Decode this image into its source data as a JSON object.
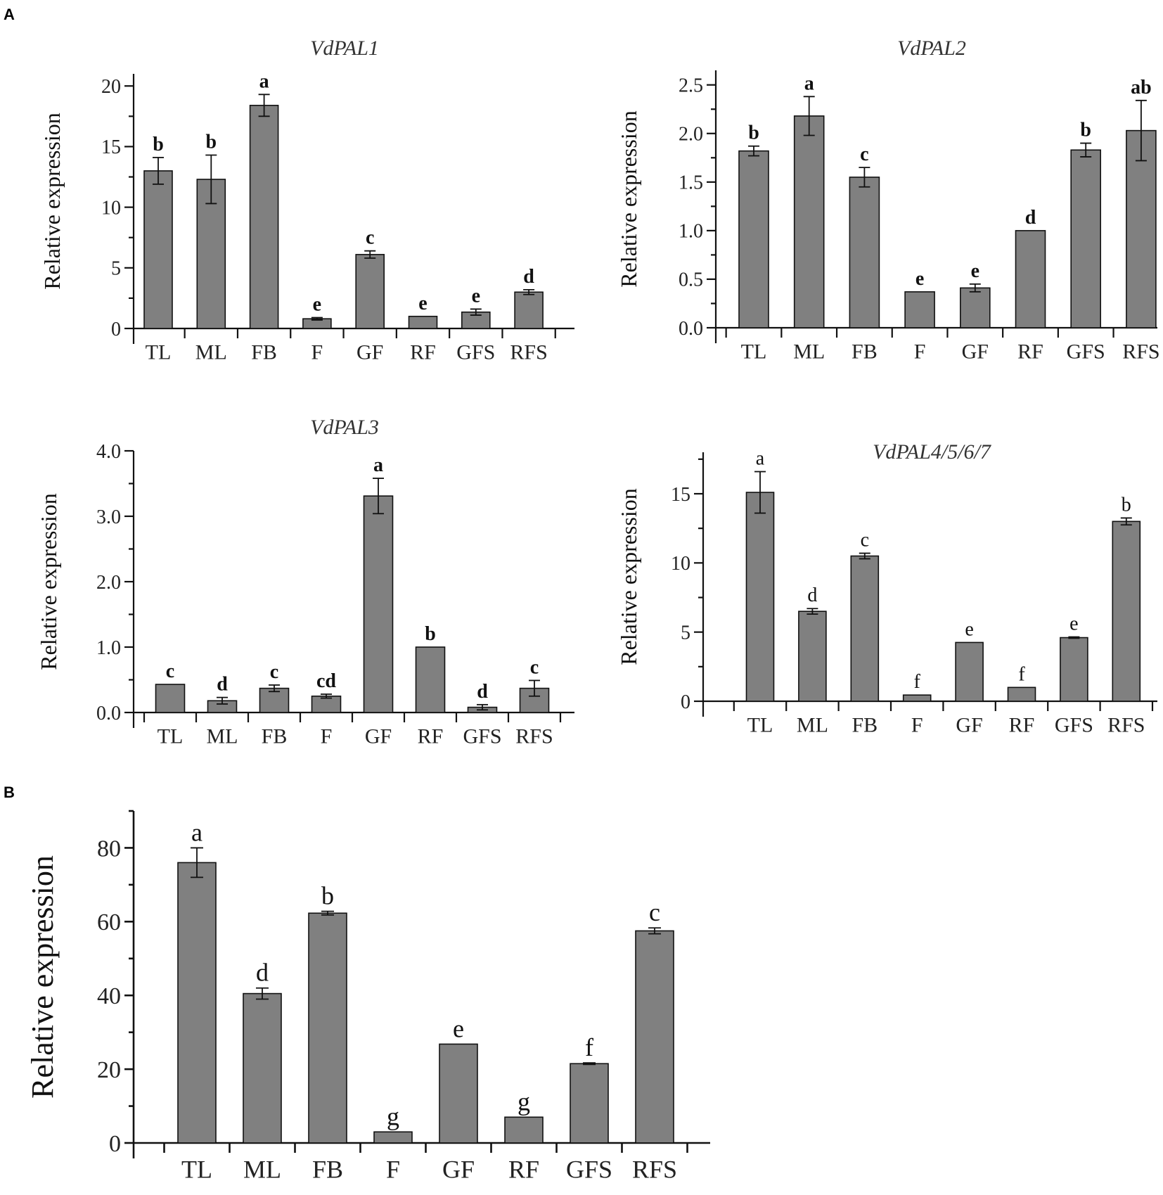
{
  "panel_labels": [
    "A",
    "B"
  ],
  "bar_color": "#808080",
  "chart_data": [
    {
      "panel": "A",
      "type": "bar",
      "title": "VdPAL1",
      "ylabel": "Relative expression",
      "xlabel": "",
      "ylim": [
        0,
        21
      ],
      "yticks": [
        0,
        5,
        10,
        15,
        20
      ],
      "ytick_labels": [
        "0",
        "5",
        "10",
        "15",
        "20"
      ],
      "categories": [
        "TL",
        "ML",
        "FB",
        "F",
        "GF",
        "RF",
        "GFS",
        "RFS"
      ],
      "values": [
        13.0,
        12.3,
        18.4,
        0.8,
        6.1,
        1.0,
        1.35,
        3.0
      ],
      "errors": [
        1.1,
        2.0,
        0.9,
        0.1,
        0.3,
        0.0,
        0.25,
        0.2
      ],
      "significance": [
        "b",
        "b",
        "a",
        "e",
        "c",
        "e",
        "e",
        "d"
      ],
      "sig_bold": true
    },
    {
      "panel": "A",
      "type": "bar",
      "title": "VdPAL2",
      "ylabel": "Relative expression",
      "xlabel": "",
      "ylim": [
        0,
        2.65
      ],
      "yticks": [
        0,
        0.5,
        1.0,
        1.5,
        2.0,
        2.5
      ],
      "ytick_labels": [
        "0.0",
        "0.5",
        "1.0",
        "1.5",
        "2.0",
        "2.5"
      ],
      "categories": [
        "TL",
        "ML",
        "FB",
        "F",
        "GF",
        "RF",
        "GFS",
        "RFS"
      ],
      "values": [
        1.82,
        2.18,
        1.55,
        0.37,
        0.41,
        1.0,
        1.83,
        2.03
      ],
      "errors": [
        0.05,
        0.2,
        0.1,
        0.0,
        0.04,
        0.0,
        0.07,
        0.31
      ],
      "significance": [
        "b",
        "a",
        "c",
        "e",
        "e",
        "d",
        "b",
        "ab"
      ],
      "sig_bold": true
    },
    {
      "panel": "A",
      "type": "bar",
      "title": "VdPAL3",
      "ylabel": "Relative expression",
      "xlabel": "",
      "ylim": [
        0,
        4.0
      ],
      "yticks": [
        0,
        1.0,
        2.0,
        3.0,
        4.0
      ],
      "ytick_labels": [
        "0.0",
        "1.0",
        "2.0",
        "3.0",
        "4.0"
      ],
      "categories": [
        "TL",
        "ML",
        "FB",
        "F",
        "GF",
        "RF",
        "GFS",
        "RFS"
      ],
      "values": [
        0.43,
        0.18,
        0.37,
        0.25,
        3.31,
        1.0,
        0.08,
        0.37
      ],
      "errors": [
        0.0,
        0.05,
        0.05,
        0.03,
        0.27,
        0.0,
        0.04,
        0.12
      ],
      "significance": [
        "c",
        "d",
        "c",
        "cd",
        "a",
        "b",
        "d",
        "c"
      ],
      "sig_bold": true
    },
    {
      "panel": "A",
      "type": "bar",
      "title": "VdPAL4/5/6/7",
      "ylabel": "Relative expression",
      "xlabel": "",
      "ylim": [
        0,
        18
      ],
      "yticks": [
        0,
        5,
        10,
        15
      ],
      "ytick_labels": [
        "0",
        "5",
        "10",
        "15"
      ],
      "categories": [
        "TL",
        "ML",
        "FB",
        "F",
        "GF",
        "RF",
        "GFS",
        "RFS"
      ],
      "values": [
        15.1,
        6.5,
        10.5,
        0.45,
        4.25,
        1.0,
        4.6,
        13.0
      ],
      "errors": [
        1.5,
        0.2,
        0.2,
        0.0,
        0.0,
        0.0,
        0.05,
        0.25
      ],
      "significance": [
        "a",
        "d",
        "c",
        "f",
        "e",
        "f",
        "e",
        "b"
      ],
      "sig_bold": false
    },
    {
      "panel": "B",
      "type": "bar",
      "title": "",
      "ylabel": "Relative expression",
      "xlabel": "",
      "ylim": [
        0,
        90
      ],
      "yticks": [
        0,
        20,
        40,
        60,
        80
      ],
      "ytick_labels": [
        "0",
        "20",
        "40",
        "60",
        "80"
      ],
      "categories": [
        "TL",
        "ML",
        "FB",
        "F",
        "GF",
        "RF",
        "GFS",
        "RFS"
      ],
      "values": [
        76.0,
        40.5,
        62.3,
        3.0,
        26.8,
        7.0,
        21.5,
        57.5
      ],
      "errors": [
        4.0,
        1.5,
        0.5,
        0.0,
        0.0,
        0.0,
        0.2,
        0.8
      ],
      "significance": [
        "a",
        "d",
        "b",
        "g",
        "e",
        "g",
        "f",
        "c"
      ],
      "sig_bold": false
    }
  ]
}
